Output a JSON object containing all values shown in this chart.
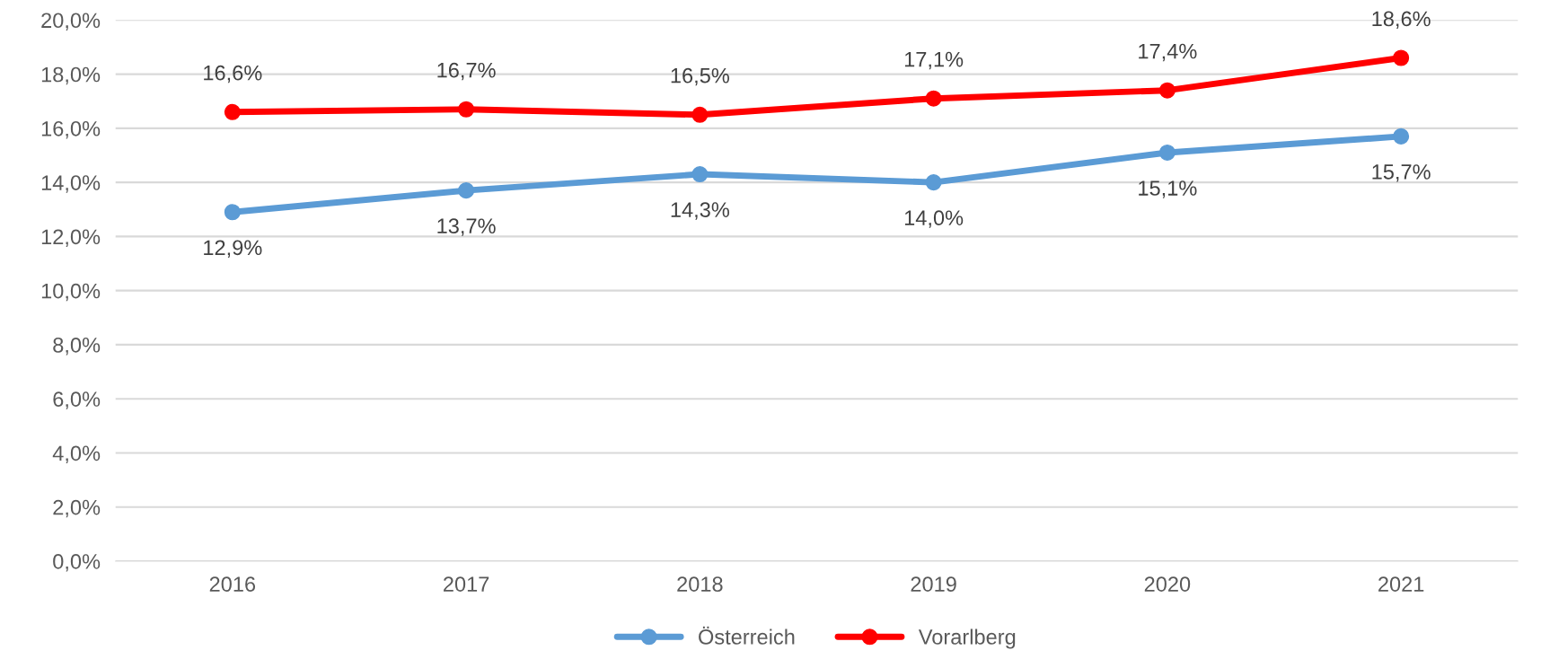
{
  "chart_data": {
    "type": "line",
    "categories": [
      "2016",
      "2017",
      "2018",
      "2019",
      "2020",
      "2021"
    ],
    "series": [
      {
        "name": "Österreich",
        "color": "#5b9bd5",
        "values": [
          12.9,
          13.7,
          14.3,
          14.0,
          15.1,
          15.7
        ],
        "value_labels": [
          "12,9%",
          "13,7%",
          "14,3%",
          "14,0%",
          "15,1%",
          "15,7%"
        ]
      },
      {
        "name": "Vorarlberg",
        "color": "#ff0000",
        "values": [
          16.6,
          16.7,
          16.5,
          17.1,
          17.4,
          18.6
        ],
        "value_labels": [
          "16,6%",
          "16,7%",
          "16,5%",
          "17,1%",
          "17,4%",
          "18,6%"
        ]
      }
    ],
    "ylim": [
      0,
      20
    ],
    "yticks": [
      {
        "value": 0,
        "label": "0,0%"
      },
      {
        "value": 2,
        "label": "2,0%"
      },
      {
        "value": 4,
        "label": "4,0%"
      },
      {
        "value": 6,
        "label": "6,0%"
      },
      {
        "value": 8,
        "label": "8,0%"
      },
      {
        "value": 10,
        "label": "10,0%"
      },
      {
        "value": 12,
        "label": "12,0%"
      },
      {
        "value": 14,
        "label": "14,0%"
      },
      {
        "value": 16,
        "label": "16,0%"
      },
      {
        "value": 18,
        "label": "18,0%"
      },
      {
        "value": 20,
        "label": "20,0%"
      }
    ],
    "grid": "y",
    "legend": "bottom",
    "marker": "circle",
    "line_style": "solid"
  }
}
